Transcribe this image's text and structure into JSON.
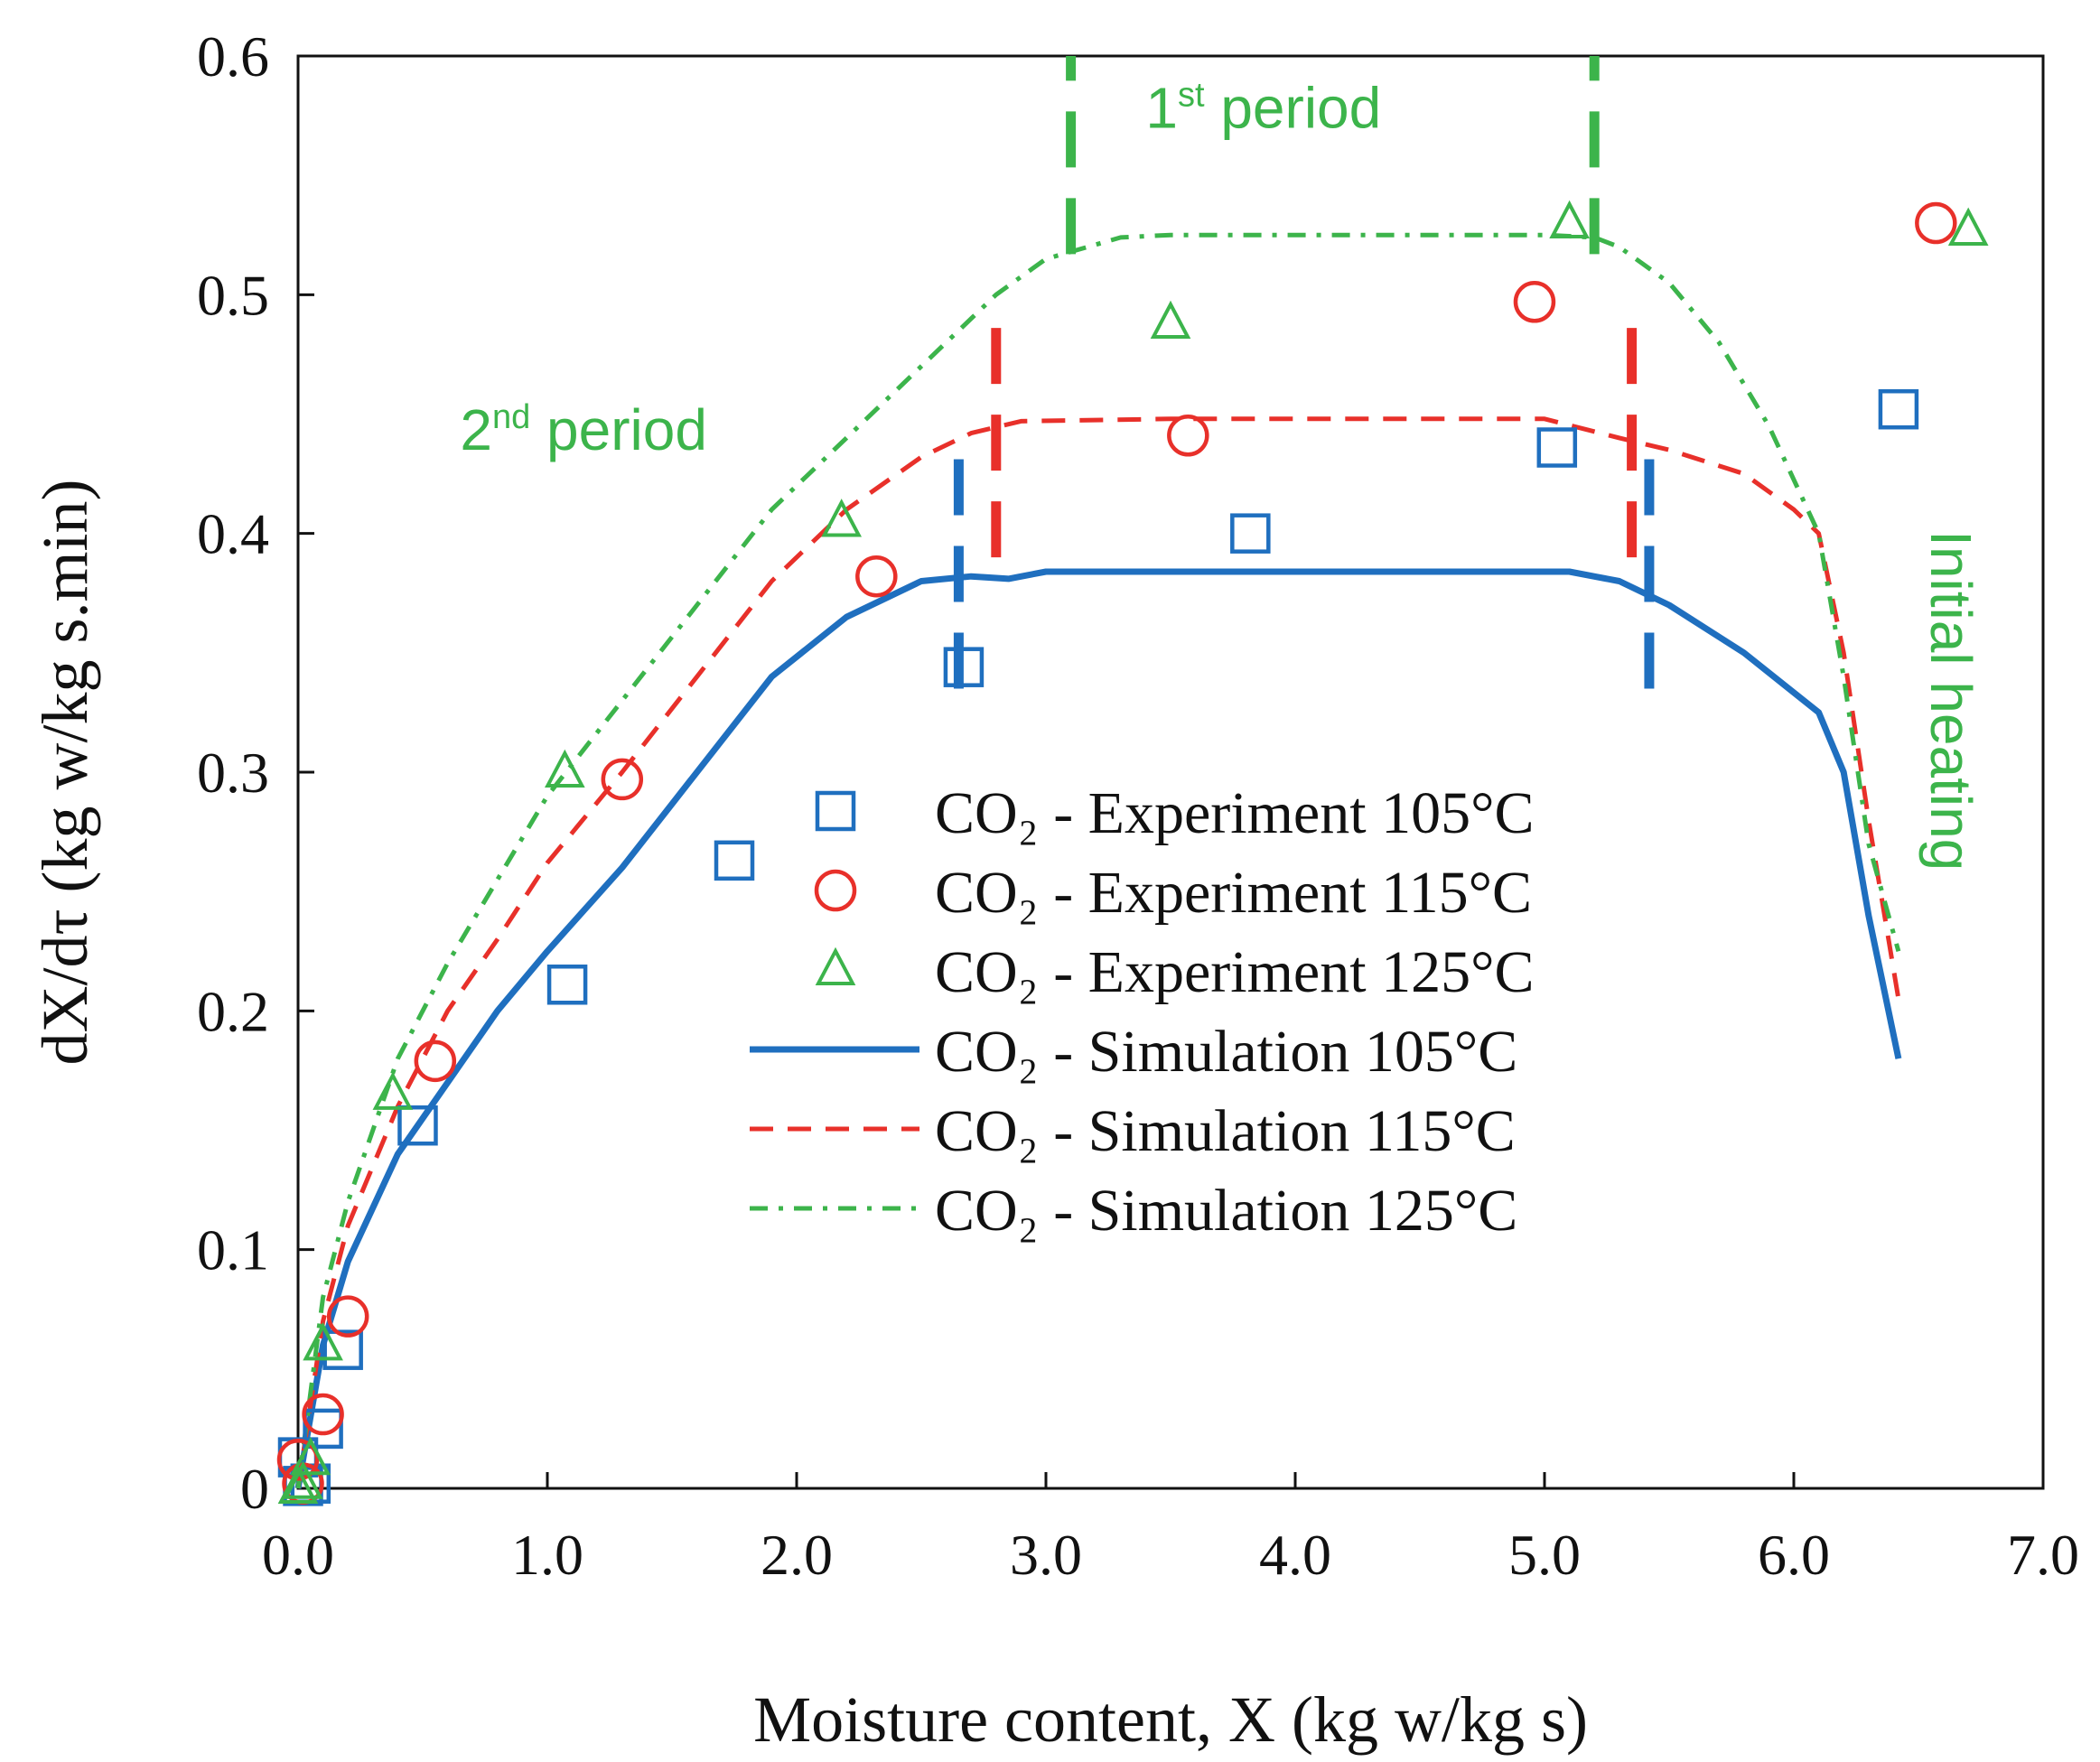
{
  "chart_data": {
    "type": "scatter",
    "xlabel": "Moisture content, X (kg w/kg s)",
    "ylabel": "dX/dτ (kg w/kg s.min)",
    "xlim": [
      0,
      7
    ],
    "ylim": [
      0,
      0.6
    ],
    "xticks": [
      "0.0",
      "1.0",
      "2.0",
      "3.0",
      "4.0",
      "5.0",
      "6.0",
      "7.0"
    ],
    "yticks": [
      "0",
      "0.1",
      "0.2",
      "0.3",
      "0.4",
      "0.5",
      "0.6"
    ],
    "colors": {
      "blue": "#1f6fbf",
      "red": "#e8302a",
      "green": "#3cb44b"
    },
    "series": [
      {
        "name": "CO₂ - Experiment 105°C",
        "kind": "marker",
        "marker": "square",
        "color": "#1f6fbf",
        "x": [
          0.0,
          0.02,
          0.05,
          0.1,
          0.18,
          0.48,
          1.08,
          1.75,
          2.67,
          3.82,
          5.05,
          6.42
        ],
        "y": [
          0.013,
          0.001,
          0.002,
          0.025,
          0.058,
          0.152,
          0.211,
          0.263,
          0.344,
          0.4,
          0.436,
          0.452
        ]
      },
      {
        "name": "CO₂ - Experiment 115°C",
        "kind": "marker",
        "marker": "circle",
        "color": "#e8302a",
        "x": [
          0.0,
          0.02,
          0.1,
          0.2,
          0.55,
          1.3,
          2.32,
          3.57,
          4.96,
          6.57
        ],
        "y": [
          0.012,
          0.002,
          0.031,
          0.072,
          0.179,
          0.297,
          0.382,
          0.441,
          0.497,
          0.53
        ]
      },
      {
        "name": "CO₂ - Experiment 125°C",
        "kind": "marker",
        "marker": "triangle",
        "color": "#3cb44b",
        "x": [
          0.0,
          0.02,
          0.05,
          0.1,
          0.38,
          1.07,
          2.18,
          3.5,
          5.1,
          6.7
        ],
        "y": [
          0.0,
          0.002,
          0.012,
          0.06,
          0.165,
          0.3,
          0.405,
          0.488,
          0.53,
          0.527
        ]
      },
      {
        "name": "CO₂ - Simulation 105°C",
        "kind": "line",
        "dash": "solid",
        "color": "#1f6fbf",
        "x": [
          0.0,
          0.05,
          0.1,
          0.2,
          0.4,
          0.6,
          0.8,
          1.0,
          1.3,
          1.6,
          1.9,
          2.2,
          2.5,
          2.7,
          2.85,
          3.0,
          3.5,
          4.0,
          4.5,
          5.0,
          5.1,
          5.3,
          5.5,
          5.8,
          6.1,
          6.2,
          6.3,
          6.42
        ],
        "y": [
          0.0,
          0.03,
          0.06,
          0.095,
          0.14,
          0.17,
          0.2,
          0.225,
          0.26,
          0.3,
          0.34,
          0.365,
          0.38,
          0.382,
          0.381,
          0.384,
          0.384,
          0.384,
          0.384,
          0.384,
          0.384,
          0.38,
          0.37,
          0.35,
          0.325,
          0.3,
          0.24,
          0.18
        ]
      },
      {
        "name": "CO₂ - Simulation 115°C",
        "kind": "line",
        "dash": "dashed",
        "color": "#e8302a",
        "x": [
          0.0,
          0.05,
          0.1,
          0.2,
          0.4,
          0.6,
          0.8,
          1.0,
          1.3,
          1.6,
          1.9,
          2.2,
          2.5,
          2.7,
          2.9,
          3.5,
          4.0,
          4.5,
          5.0,
          5.3,
          5.5,
          5.8,
          6.0,
          6.1,
          6.2,
          6.3,
          6.42
        ],
        "y": [
          0.0,
          0.035,
          0.07,
          0.11,
          0.16,
          0.2,
          0.23,
          0.262,
          0.3,
          0.34,
          0.38,
          0.41,
          0.432,
          0.442,
          0.447,
          0.448,
          0.448,
          0.448,
          0.448,
          0.44,
          0.435,
          0.425,
          0.41,
          0.4,
          0.35,
          0.28,
          0.205
        ]
      },
      {
        "name": "CO₂ - Simulation 125°C",
        "kind": "line",
        "dash": "dashdot",
        "color": "#3cb44b",
        "x": [
          0.0,
          0.05,
          0.1,
          0.2,
          0.4,
          0.6,
          0.8,
          1.0,
          1.3,
          1.6,
          1.9,
          2.2,
          2.5,
          2.8,
          3.0,
          3.3,
          3.5,
          4.0,
          4.5,
          5.0,
          5.2,
          5.3,
          5.5,
          5.7,
          5.9,
          6.1,
          6.2,
          6.3,
          6.42
        ],
        "y": [
          0.0,
          0.04,
          0.08,
          0.12,
          0.18,
          0.22,
          0.255,
          0.29,
          0.33,
          0.37,
          0.41,
          0.44,
          0.47,
          0.5,
          0.515,
          0.524,
          0.525,
          0.525,
          0.525,
          0.525,
          0.524,
          0.52,
          0.505,
          0.48,
          0.445,
          0.4,
          0.34,
          0.27,
          0.225
        ]
      }
    ],
    "period_markers": [
      {
        "color": "#3cb44b",
        "x": [
          3.1,
          5.2
        ],
        "y_range": [
          0.517,
          0.6
        ]
      },
      {
        "color": "#e8302a",
        "x": [
          2.8,
          5.35
        ],
        "y_range": [
          0.39,
          0.49
        ]
      },
      {
        "color": "#1f6fbf",
        "x": [
          2.65,
          5.42
        ],
        "y_range": [
          0.335,
          0.44
        ]
      }
    ],
    "annotations": [
      {
        "text": "1",
        "sup": "st",
        "rest": " period",
        "x": 3.4,
        "y": 0.57,
        "color": "#3cb44b"
      },
      {
        "text": "2",
        "sup": "nd",
        "rest": " period",
        "x": 0.65,
        "y": 0.435,
        "color": "#3cb44b"
      },
      {
        "text": "Initial heating",
        "x": 6.55,
        "y": 0.33,
        "color": "#3cb44b",
        "rotate": 90
      }
    ],
    "legend_position": "center-right"
  }
}
